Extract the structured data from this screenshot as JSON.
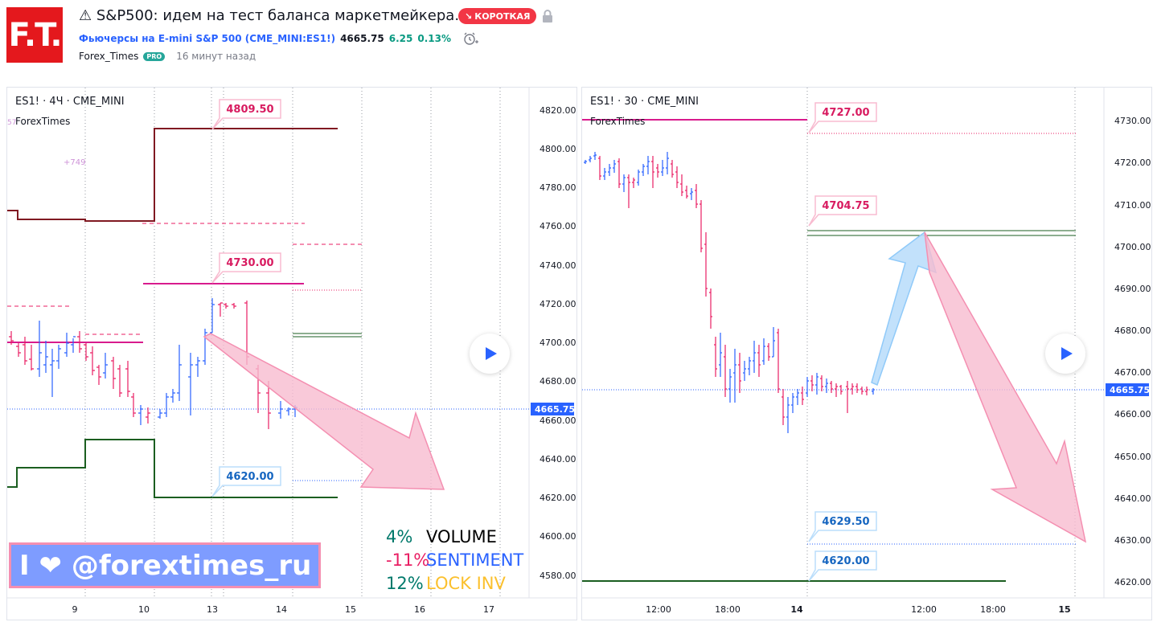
{
  "header": {
    "logo_text": "F.T.",
    "title": "⚠ S&P500: идем на тест баланса маркетмейкера.",
    "badge": "КОРОТКАЯ",
    "symbol_name": "Фьючерсы на E-mini S&P 500",
    "symbol_ticker": "(CME_MINI:ES1!)",
    "price": "4665.75",
    "change": "6.25",
    "change_pct": "0.13%",
    "author": "Forex_Times",
    "author_badge": "PRO",
    "time_ago": "16 минут назад"
  },
  "left_chart": {
    "symbol": "ES1! · 4Ч · CME_MINI",
    "indicator": "ForexTimes",
    "indicator_value": "+749",
    "price_labels": [
      "4820.00",
      "4800.00",
      "4780.00",
      "4760.00",
      "4740.00",
      "4720.00",
      "4700.00",
      "4680.00",
      "4660.00",
      "4640.00",
      "4620.00",
      "4600.00",
      "4580.00"
    ],
    "current_price": "4665.75",
    "x_labels": [
      "9",
      "10",
      "13",
      "14",
      "15",
      "16",
      "17"
    ],
    "callouts": [
      {
        "text": "4809.50",
        "color": "#d81b60"
      },
      {
        "text": "4730.00",
        "color": "#d81b60"
      },
      {
        "text": "4620.00",
        "color": "#2962ff"
      }
    ],
    "promo": "I ❤ @forextimes_ru",
    "stats": [
      {
        "value": "4%",
        "label": "VOLUME",
        "value_color": "#00796b",
        "label_color": "#000000"
      },
      {
        "value": "-11%",
        "label": "SENTIMENT",
        "value_color": "#e91e63",
        "label_color": "#2962ff"
      },
      {
        "value": "12%",
        "label": "LOCK INV",
        "value_color": "#00796b",
        "label_color": "#fbc02d"
      }
    ]
  },
  "right_chart": {
    "symbol": "ES1! · 30 · CME_MINI",
    "indicator": "ForexTimes",
    "price_labels": [
      "4730.00",
      "4720.00",
      "4710.00",
      "4700.00",
      "4690.00",
      "4680.00",
      "4670.00",
      "4660.00",
      "4650.00",
      "4640.00",
      "4630.00",
      "4620.00"
    ],
    "current_price": "4665.75",
    "x_labels": [
      "12:00",
      "18:00",
      "14",
      "12:00",
      "18:00",
      "15"
    ],
    "callouts": [
      {
        "text": "4727.00",
        "color": "#d81b60"
      },
      {
        "text": "4704.75",
        "color": "#d81b60"
      },
      {
        "text": "4629.50",
        "color": "#2962ff"
      },
      {
        "text": "4620.00",
        "color": "#2962ff"
      }
    ]
  }
}
